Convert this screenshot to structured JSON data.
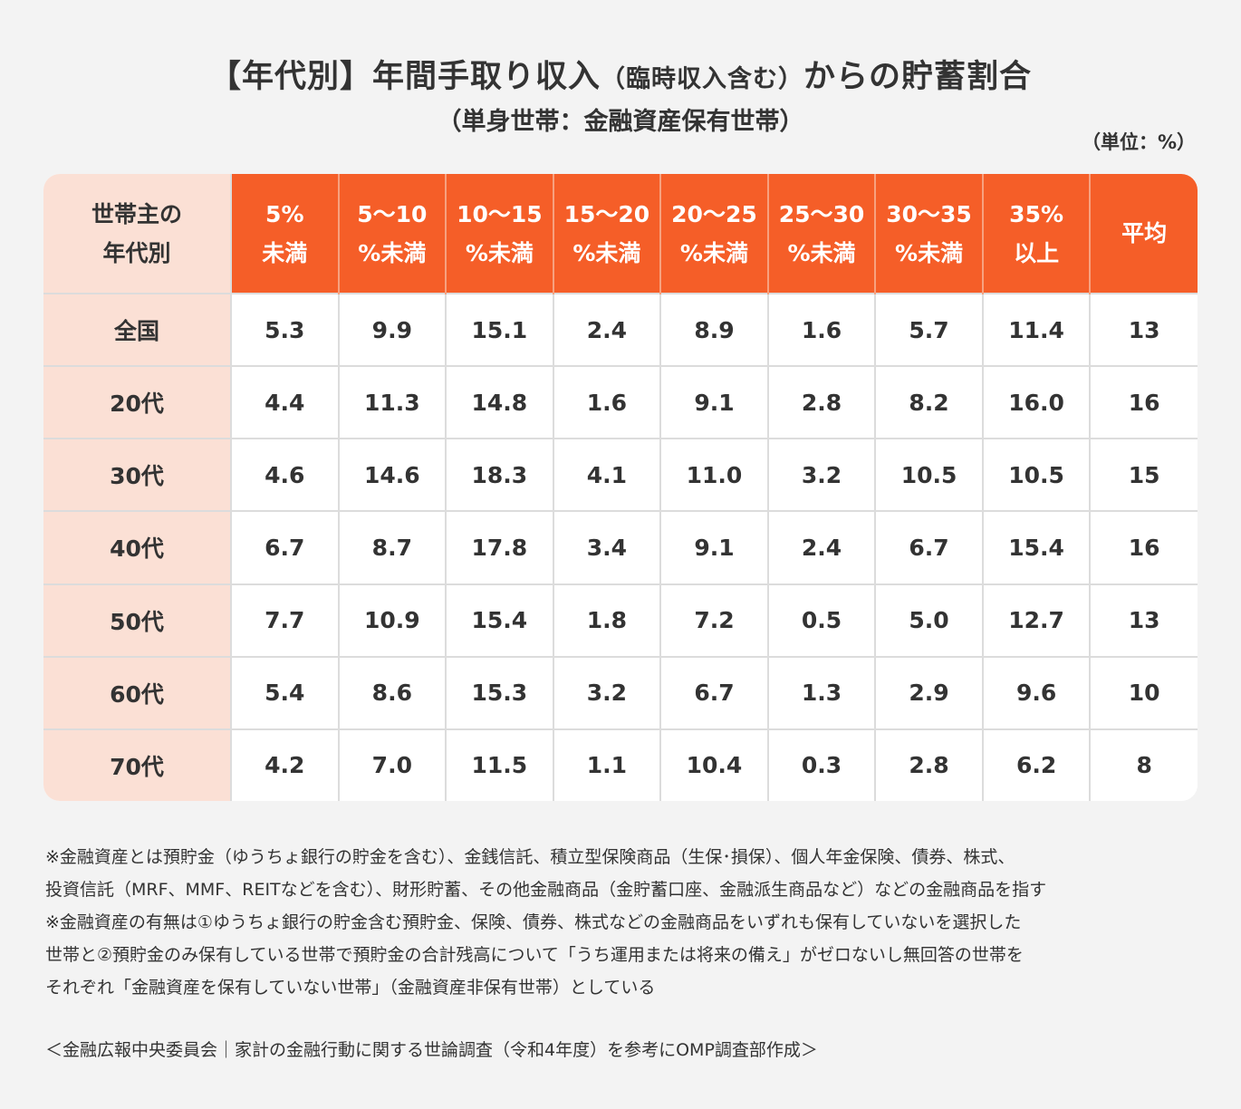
{
  "title": {
    "main_a": "【年代別】年間手取り収入",
    "main_small": "（臨時収入含む）",
    "main_b": "からの貯蓄割合"
  },
  "subtitle": "（単身世帯：金融資産保有世帯）",
  "unit": "（単位：%）",
  "colors": {
    "header": "#f55e28",
    "row_header": "#fbe0d5",
    "background": "#f3f3f3",
    "cell": "#ffffff"
  },
  "chart_data": {
    "type": "table",
    "corner": [
      "世帯主の",
      "年代別"
    ],
    "columns": [
      [
        "5%",
        "未満"
      ],
      [
        "5〜10",
        "%未満"
      ],
      [
        "10〜15",
        "%未満"
      ],
      [
        "15〜20",
        "%未満"
      ],
      [
        "20〜25",
        "%未満"
      ],
      [
        "25〜30",
        "%未満"
      ],
      [
        "30〜35",
        "%未満"
      ],
      [
        "35%",
        "以上"
      ],
      [
        "平均"
      ]
    ],
    "rows": [
      {
        "label": "全国",
        "values": [
          "5.3",
          "9.9",
          "15.1",
          "2.4",
          "8.9",
          "1.6",
          "5.7",
          "11.4",
          "13"
        ]
      },
      {
        "label": "20代",
        "values": [
          "4.4",
          "11.3",
          "14.8",
          "1.6",
          "9.1",
          "2.8",
          "8.2",
          "16.0",
          "16"
        ]
      },
      {
        "label": "30代",
        "values": [
          "4.6",
          "14.6",
          "18.3",
          "4.1",
          "11.0",
          "3.2",
          "10.5",
          "10.5",
          "15"
        ]
      },
      {
        "label": "40代",
        "values": [
          "6.7",
          "8.7",
          "17.8",
          "3.4",
          "9.1",
          "2.4",
          "6.7",
          "15.4",
          "16"
        ]
      },
      {
        "label": "50代",
        "values": [
          "7.7",
          "10.9",
          "15.4",
          "1.8",
          "7.2",
          "0.5",
          "5.0",
          "12.7",
          "13"
        ]
      },
      {
        "label": "60代",
        "values": [
          "5.4",
          "8.6",
          "15.3",
          "3.2",
          "6.7",
          "1.3",
          "2.9",
          "9.6",
          "10"
        ]
      },
      {
        "label": "70代",
        "values": [
          "4.2",
          "7.0",
          "11.5",
          "1.1",
          "10.4",
          "0.3",
          "2.8",
          "6.2",
          "8"
        ]
      }
    ]
  },
  "notes": [
    "※金融資産とは預貯金（ゆうちょ銀行の貯金を含む）、金銭信託、積立型保険商品（生保･損保）、個人年金保険、債券、株式、",
    "投資信託（MRF、MMF、REITなどを含む）、財形貯蓄、その他金融商品（金貯蓄口座、金融派生商品など）などの金融商品を指す",
    "※金融資産の有無は①ゆうちょ銀行の貯金含む預貯金、保険、債券、株式などの金融商品をいずれも保有していないを選択した",
    "世帯と②預貯金のみ保有している世帯で預貯金の合計残高について「うち運用または将来の備え」がゼロないし無回答の世帯を",
    "それぞれ「金融資産を保有していない世帯」（金融資産非保有世帯）としている"
  ],
  "source": "＜金融広報中央委員会｜家計の金融行動に関する世論調査（令和4年度）を参考にOMP調査部作成＞"
}
